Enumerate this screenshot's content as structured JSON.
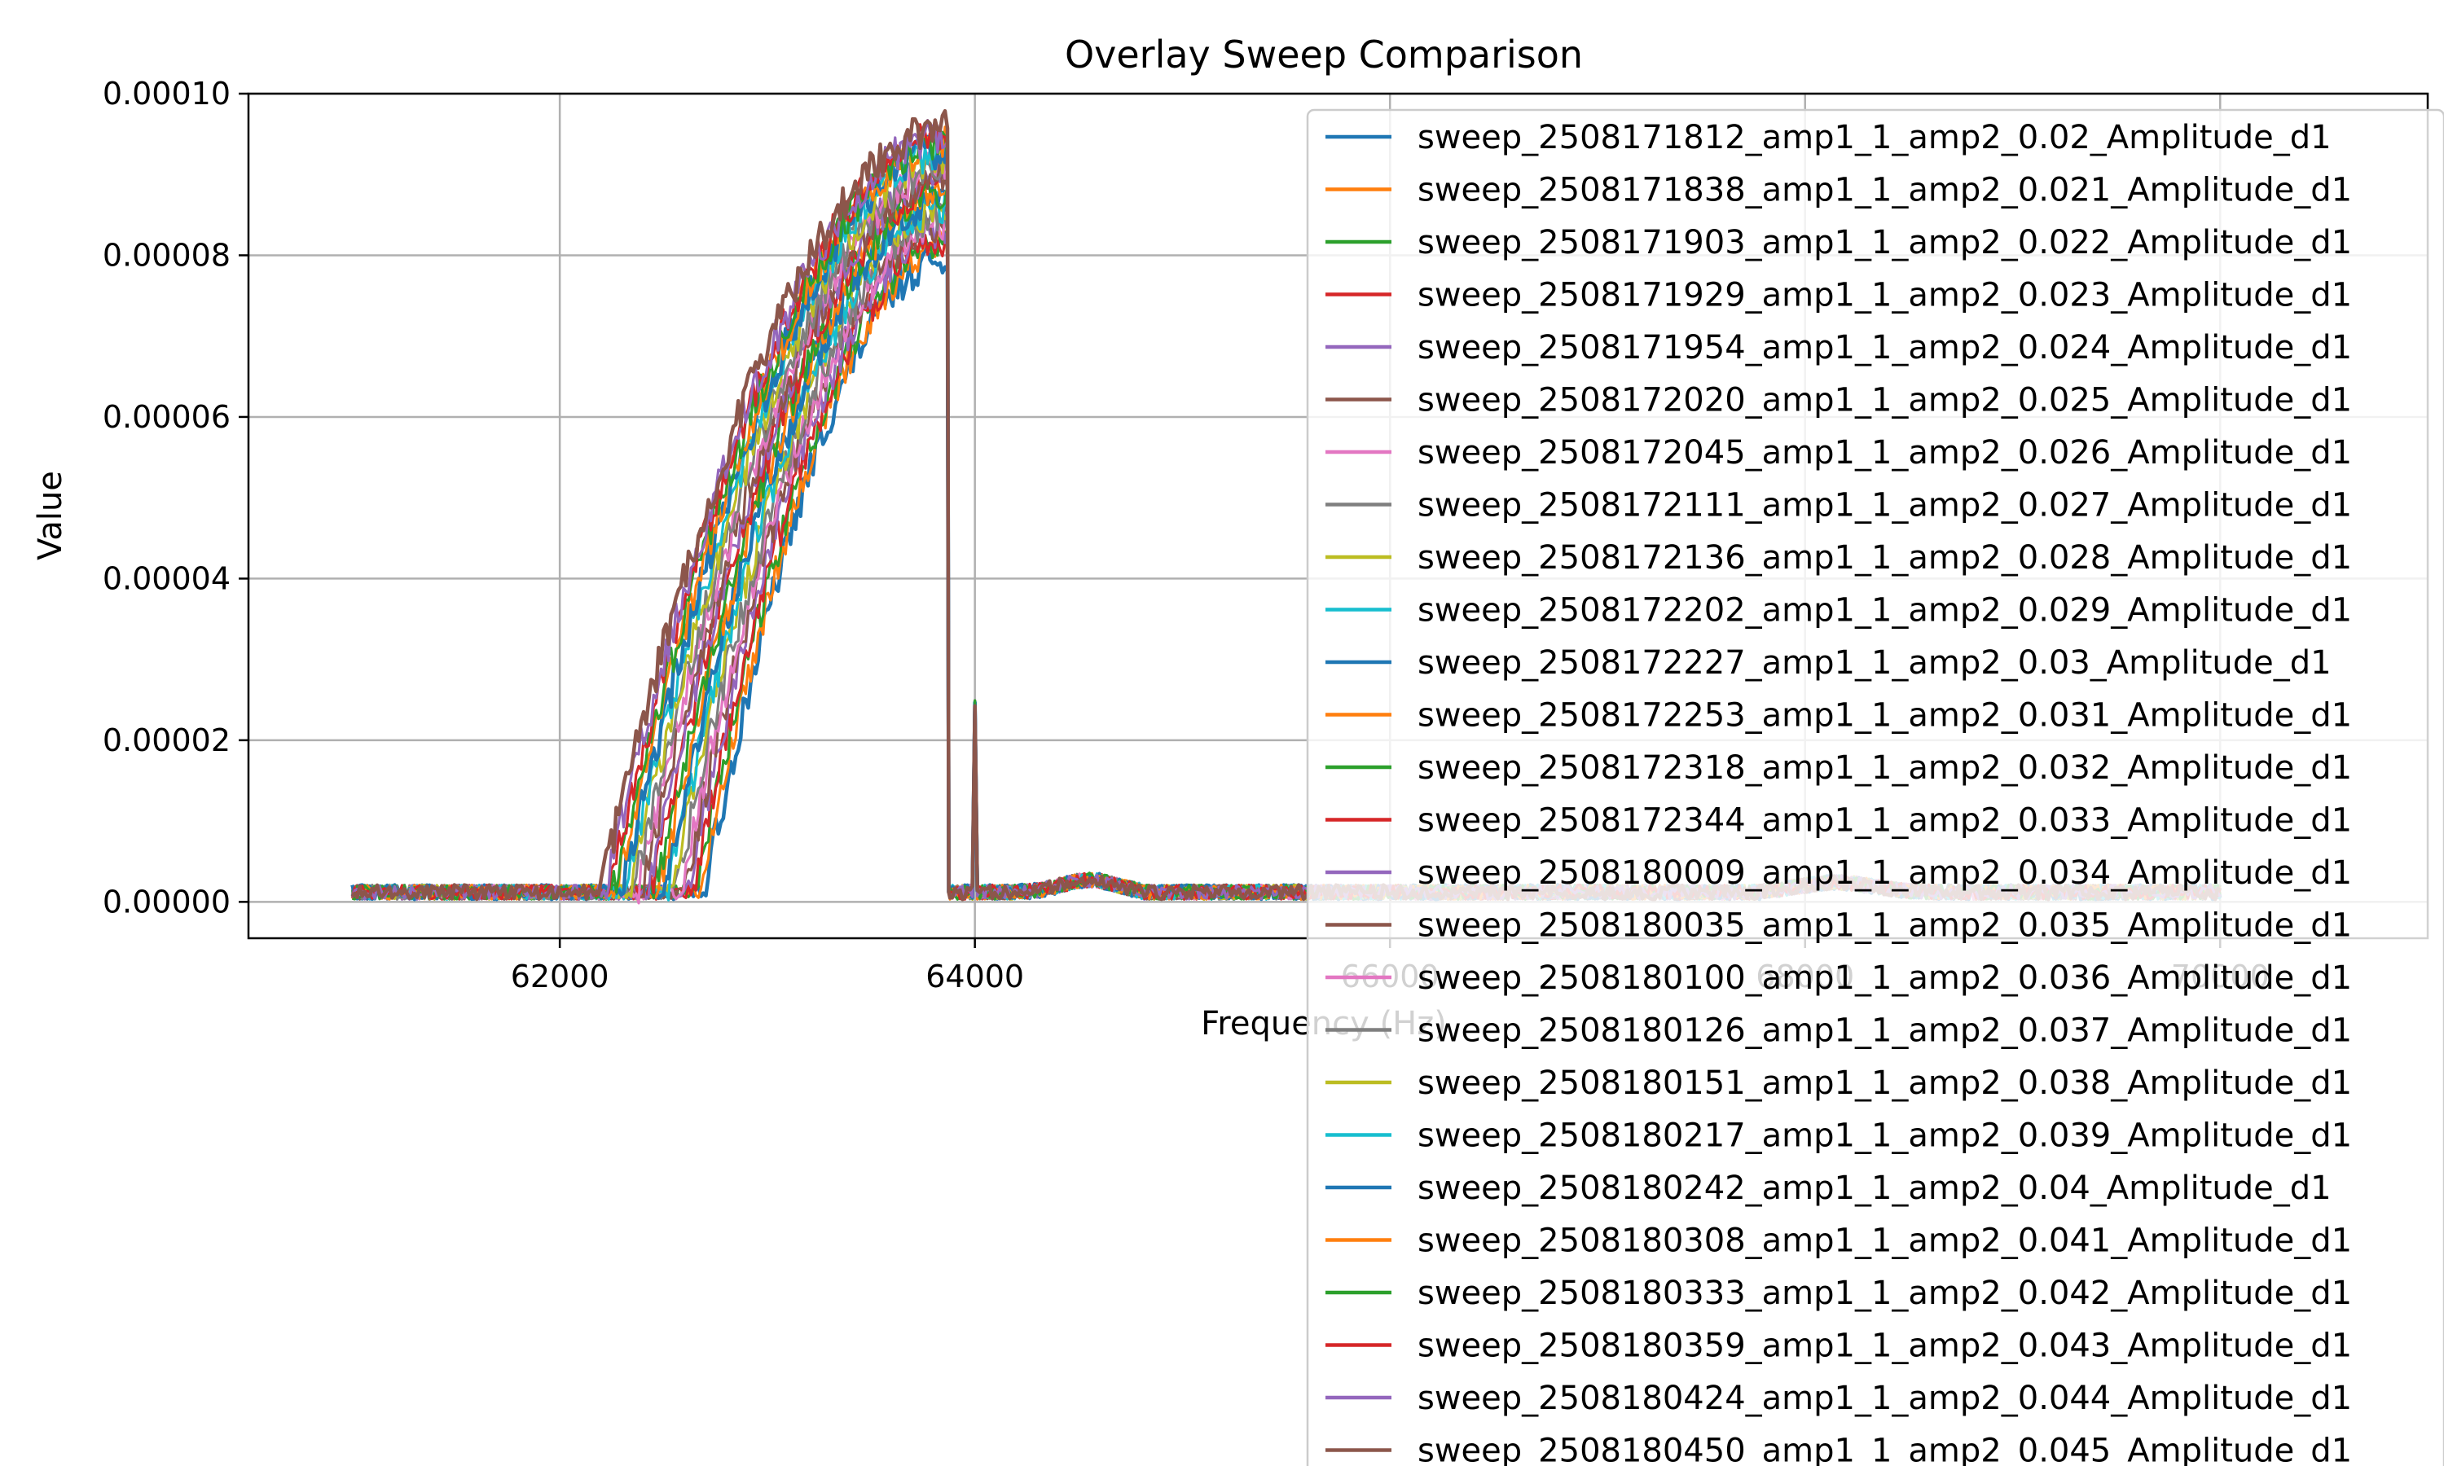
{
  "chart_data": {
    "type": "line",
    "title": "Overlay Sweep Comparison",
    "xlabel": "Frequency (Hz)",
    "ylabel": "Value",
    "xlim": [
      60500,
      71000
    ],
    "ylim": [
      -4.5e-06,
      0.0001
    ],
    "x_ticks": [
      "62000",
      "64000",
      "66000",
      "68000",
      "70000"
    ],
    "x_tick_values": [
      62000,
      64000,
      66000,
      68000,
      70000
    ],
    "y_ticks": [
      "0.00000",
      "0.00002",
      "0.00004",
      "0.00006",
      "0.00008",
      "0.00010"
    ],
    "y_tick_values": [
      0,
      2e-05,
      4e-05,
      6e-05,
      8e-05,
      0.0001
    ],
    "grid": true,
    "legend_position": "right",
    "x_range_data": [
      61000,
      70000
    ],
    "drop_frequency": 63870,
    "spike": {
      "x": 64000,
      "y": 2.5e-05
    },
    "series": [
      {
        "name": "sweep_2508171812_amp1_1_amp2_0.02_Amplitude_d1",
        "color": "#1f77b4",
        "onset": 62700,
        "peak": 8e-05
      },
      {
        "name": "sweep_2508171838_amp1_1_amp2_0.021_Amplitude_d1",
        "color": "#ff7f0e",
        "onset": 62680,
        "peak": 8.1e-05
      },
      {
        "name": "sweep_2508171903_amp1_1_amp2_0.022_Amplitude_d1",
        "color": "#2ca02c",
        "onset": 62660,
        "peak": 8.2e-05
      },
      {
        "name": "sweep_2508171929_amp1_1_amp2_0.023_Amplitude_d1",
        "color": "#d62728",
        "onset": 62640,
        "peak": 8.2e-05
      },
      {
        "name": "sweep_2508171954_amp1_1_amp2_0.024_Amplitude_d1",
        "color": "#9467bd",
        "onset": 62620,
        "peak": 8.3e-05
      },
      {
        "name": "sweep_2508172020_amp1_1_amp2_0.025_Amplitude_d1",
        "color": "#8c564b",
        "onset": 62600,
        "peak": 8.4e-05
      },
      {
        "name": "sweep_2508172045_amp1_1_amp2_0.026_Amplitude_d1",
        "color": "#e377c2",
        "onset": 62580,
        "peak": 8.4e-05
      },
      {
        "name": "sweep_2508172111_amp1_1_amp2_0.027_Amplitude_d1",
        "color": "#7f7f7f",
        "onset": 62560,
        "peak": 8.5e-05
      },
      {
        "name": "sweep_2508172136_amp1_1_amp2_0.028_Amplitude_d1",
        "color": "#bcbd22",
        "onset": 62540,
        "peak": 8.6e-05
      },
      {
        "name": "sweep_2508172202_amp1_1_amp2_0.029_Amplitude_d1",
        "color": "#17becf",
        "onset": 62520,
        "peak": 8.6e-05
      },
      {
        "name": "sweep_2508172227_amp1_1_amp2_0.03_Amplitude_d1",
        "color": "#1f77b4",
        "onset": 62500,
        "peak": 8.7e-05
      },
      {
        "name": "sweep_2508172253_amp1_1_amp2_0.031_Amplitude_d1",
        "color": "#ff7f0e",
        "onset": 62480,
        "peak": 8.8e-05
      },
      {
        "name": "sweep_2508172318_amp1_1_amp2_0.032_Amplitude_d1",
        "color": "#2ca02c",
        "onset": 62460,
        "peak": 8.8e-05
      },
      {
        "name": "sweep_2508172344_amp1_1_amp2_0.033_Amplitude_d1",
        "color": "#d62728",
        "onset": 62440,
        "peak": 8.9e-05
      },
      {
        "name": "sweep_2508180009_amp1_1_amp2_0.034_Amplitude_d1",
        "color": "#9467bd",
        "onset": 62420,
        "peak": 9e-05
      },
      {
        "name": "sweep_2508180035_amp1_1_amp2_0.035_Amplitude_d1",
        "color": "#8c564b",
        "onset": 62400,
        "peak": 9e-05
      },
      {
        "name": "sweep_2508180100_amp1_1_amp2_0.036_Amplitude_d1",
        "color": "#e377c2",
        "onset": 62380,
        "peak": 9.1e-05
      },
      {
        "name": "sweep_2508180126_amp1_1_amp2_0.037_Amplitude_d1",
        "color": "#7f7f7f",
        "onset": 62360,
        "peak": 9.1e-05
      },
      {
        "name": "sweep_2508180151_amp1_1_amp2_0.038_Amplitude_d1",
        "color": "#bcbd22",
        "onset": 62340,
        "peak": 9.2e-05
      },
      {
        "name": "sweep_2508180217_amp1_1_amp2_0.039_Amplitude_d1",
        "color": "#17becf",
        "onset": 62320,
        "peak": 9.3e-05
      },
      {
        "name": "sweep_2508180242_amp1_1_amp2_0.04_Amplitude_d1",
        "color": "#1f77b4",
        "onset": 62300,
        "peak": 9.3e-05
      },
      {
        "name": "sweep_2508180308_amp1_1_amp2_0.041_Amplitude_d1",
        "color": "#ff7f0e",
        "onset": 62280,
        "peak": 9.4e-05
      },
      {
        "name": "sweep_2508180333_amp1_1_amp2_0.042_Amplitude_d1",
        "color": "#2ca02c",
        "onset": 62260,
        "peak": 9.4e-05
      },
      {
        "name": "sweep_2508180359_amp1_1_amp2_0.043_Amplitude_d1",
        "color": "#d62728",
        "onset": 62240,
        "peak": 9.5e-05
      },
      {
        "name": "sweep_2508180424_amp1_1_amp2_0.044_Amplitude_d1",
        "color": "#9467bd",
        "onset": 62220,
        "peak": 9.5e-05
      },
      {
        "name": "sweep_2508180450_amp1_1_amp2_0.045_Amplitude_d1",
        "color": "#8c564b",
        "onset": 62200,
        "peak": 9.6e-05
      }
    ]
  }
}
